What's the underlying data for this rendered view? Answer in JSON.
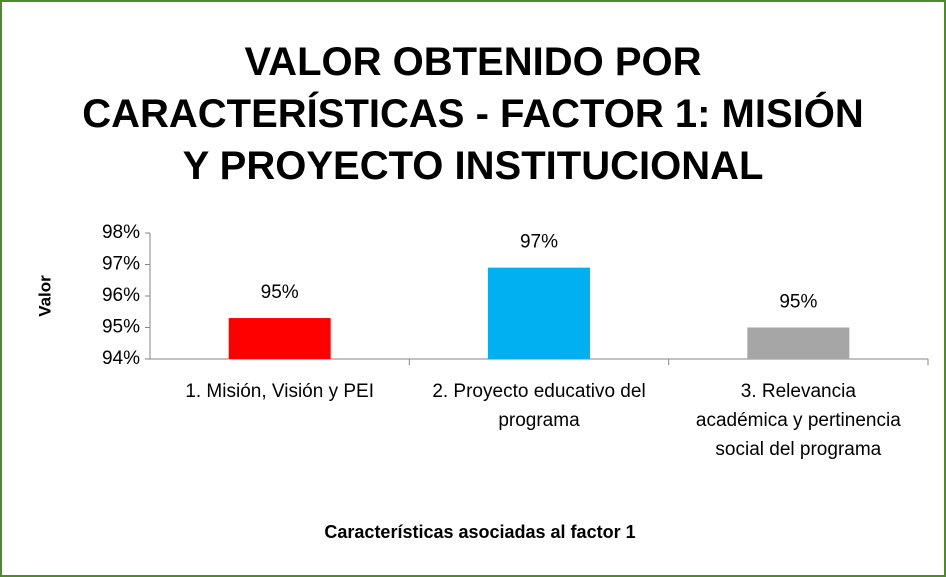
{
  "chart_data": {
    "type": "bar",
    "title": "VALOR OBTENIDO POR CARACTERÍSTICAS - FACTOR 1: MISIÓN Y PROYECTO INSTITUCIONAL",
    "x_label": "Características asociadas al factor 1",
    "y_label": "Valor",
    "categories": [
      "1. Misión, Visión y PEI",
      "2. Proyecto educativo del programa",
      "3. Relevancia académica y pertinencia social del programa"
    ],
    "values": [
      95.3,
      96.9,
      95.0
    ],
    "value_labels": [
      "95%",
      "97%",
      "95%"
    ],
    "colors": [
      "#ff0000",
      "#00b0f0",
      "#a6a6a6"
    ],
    "ylim": [
      94,
      98
    ],
    "yticks": [
      {
        "value": 94,
        "label": "94%"
      },
      {
        "value": 95,
        "label": "95%"
      },
      {
        "value": 96,
        "label": "96%"
      },
      {
        "value": 97,
        "label": "97%"
      },
      {
        "value": 98,
        "label": "98%"
      }
    ],
    "grid": false
  }
}
